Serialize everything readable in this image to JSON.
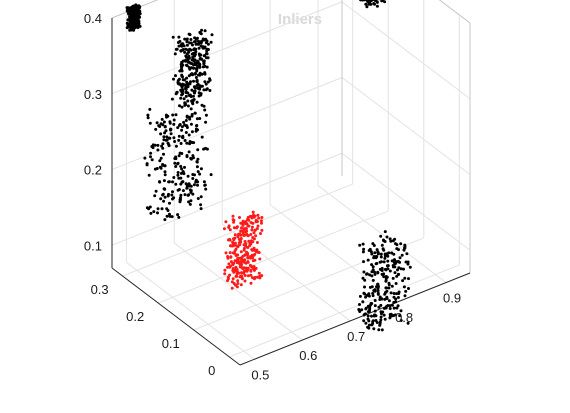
{
  "chart_data": {
    "type": "scatter",
    "projection": "3d",
    "title": "Inliers",
    "xlabel": "",
    "ylabel": "",
    "zlabel": "",
    "x_ticks": [
      "0.5",
      "0.6",
      "0.7",
      "0.8",
      "0.9"
    ],
    "y_ticks": [
      "0",
      "0.1",
      "0.2",
      "0.3"
    ],
    "z_ticks": [
      "0.1",
      "0.2",
      "0.3",
      "0.4"
    ],
    "xlim": [
      0.47,
      0.95
    ],
    "ylim": [
      -0.03,
      0.33
    ],
    "zlim": [
      0.07,
      0.4
    ],
    "grid": true,
    "legend": "none",
    "series": [
      {
        "color": "#000000",
        "clusters": [
          {
            "x": 0.55,
            "y": 0.25,
            "z": 0.22,
            "spread": 0.05
          },
          {
            "x": 0.6,
            "y": 0.28,
            "z": 0.32,
            "spread": 0.03
          },
          {
            "x": 0.83,
            "y": 0.05,
            "z": 0.06,
            "spread": 0.04
          },
          {
            "x": 0.92,
            "y": 0.2,
            "z": 0.38,
            "spread": 0.02
          },
          {
            "x": 0.5,
            "y": 0.31,
            "z": 0.4,
            "spread": 0.01
          }
        ]
      },
      {
        "color": "#ff1a1a",
        "clusters": [
          {
            "x": 0.56,
            "y": 0.08,
            "z": 0.16,
            "spread": 0.03
          }
        ]
      }
    ]
  }
}
